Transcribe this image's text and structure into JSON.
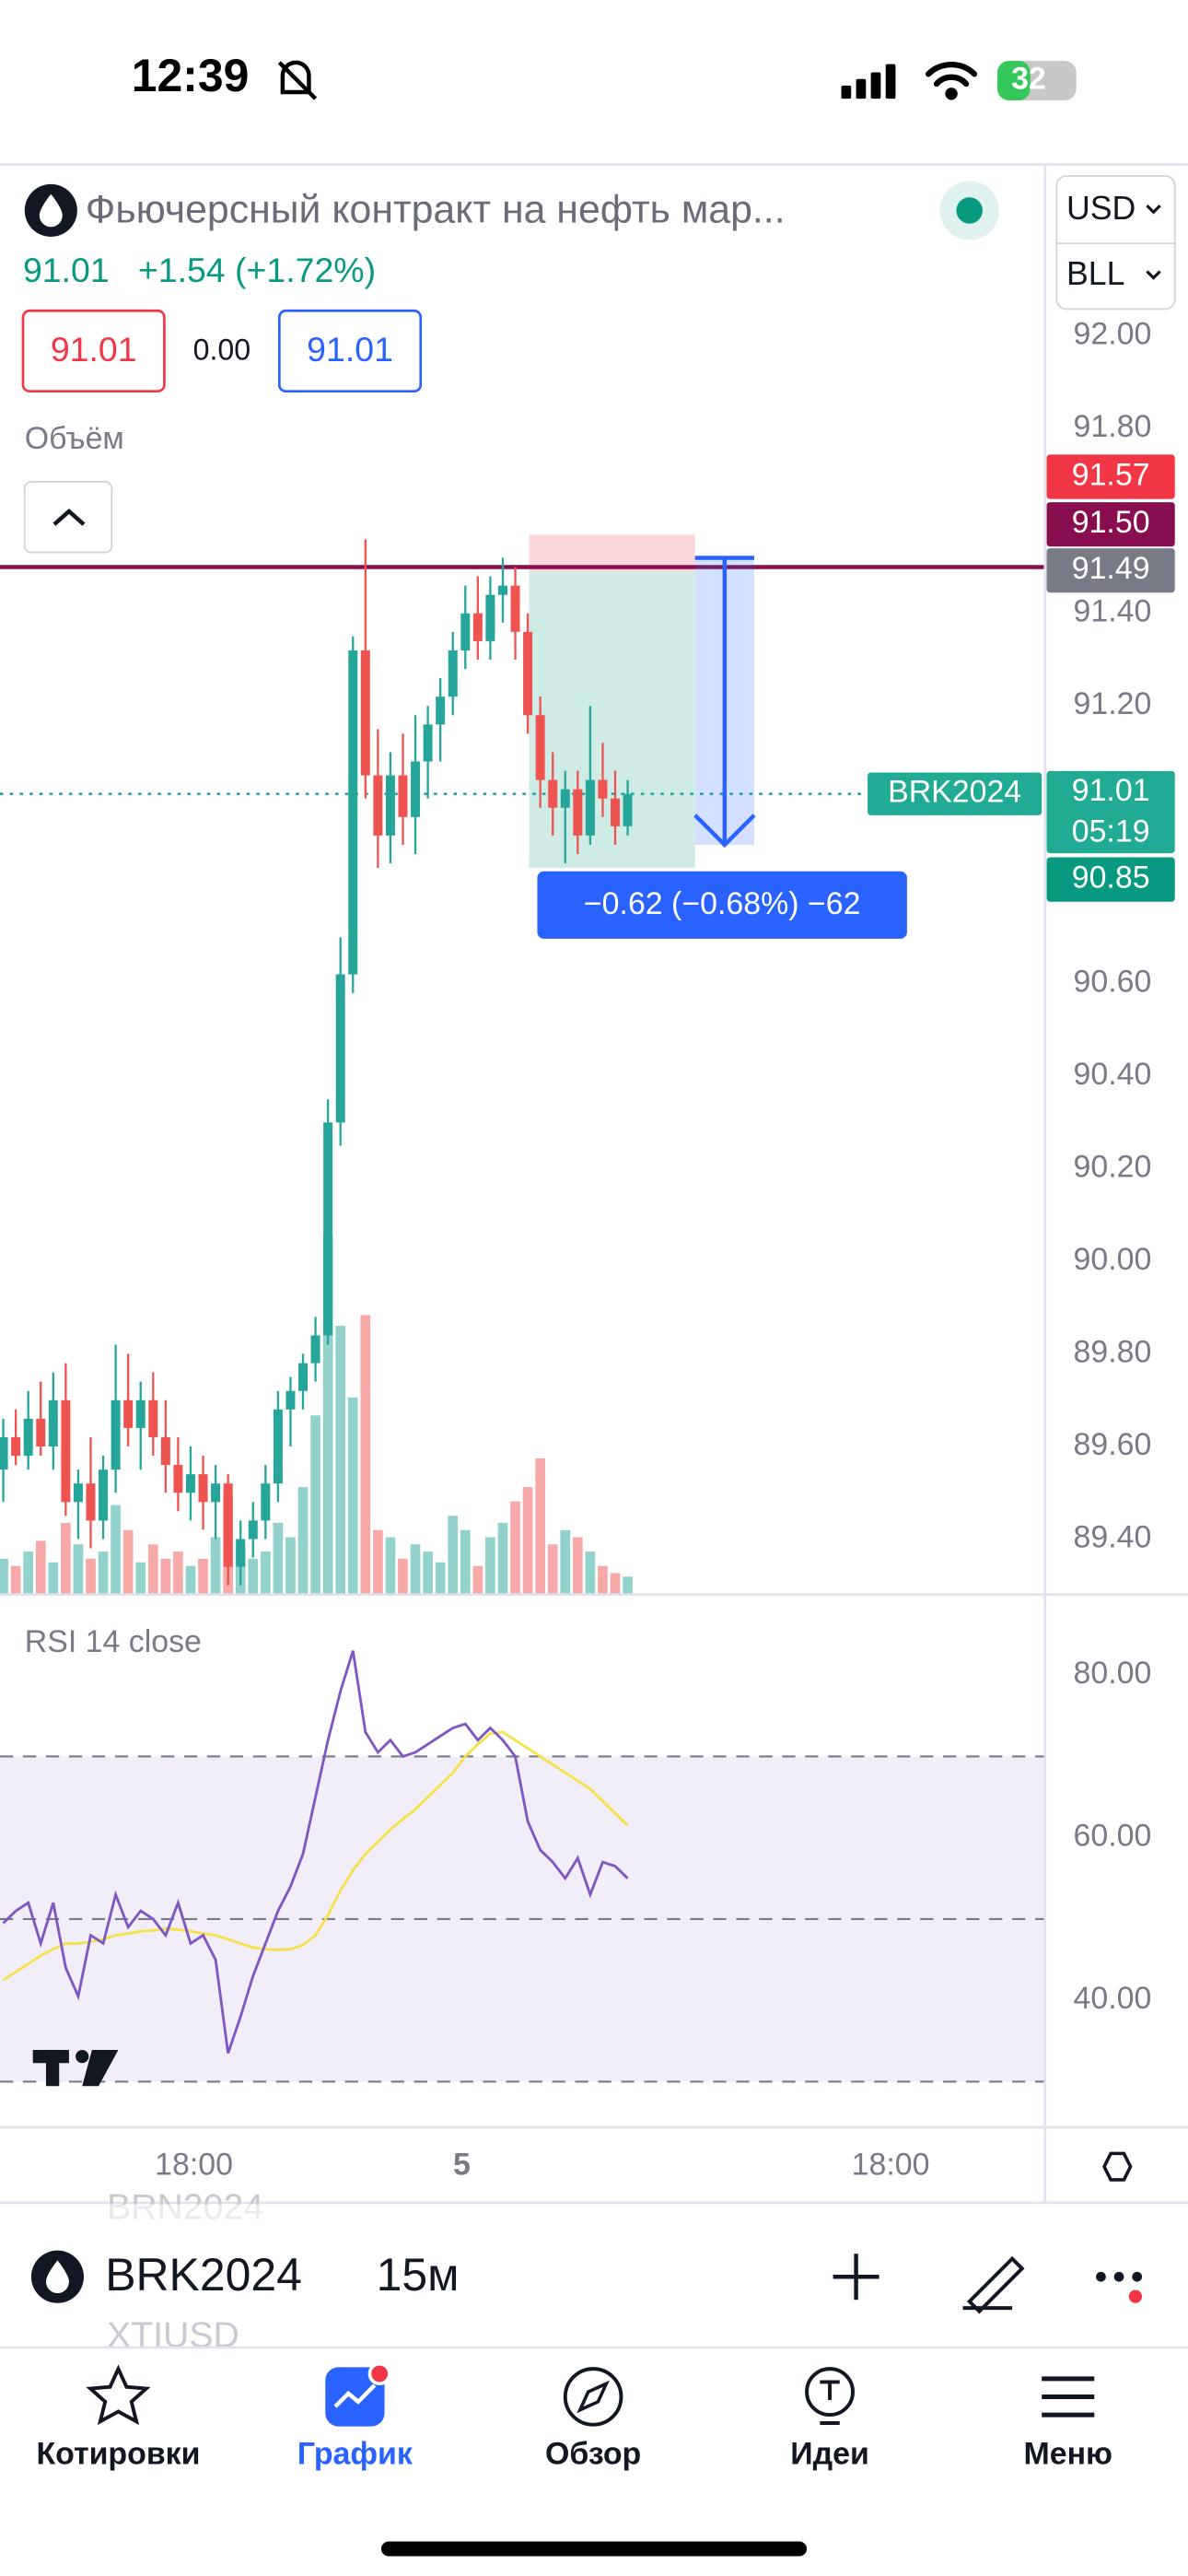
{
  "status_bar": {
    "time": "12:39",
    "battery": "32"
  },
  "header": {
    "title": "Фьючерсный контракт на нефть мар...",
    "price": "91.01",
    "change": "+1.54 (+1.72%)",
    "sell": "91.01",
    "spread": "0.00",
    "buy": "91.01",
    "currency": "USD",
    "unit": "BLL",
    "volume_label": "Объём"
  },
  "chart_data": {
    "type": "candlestick",
    "open": [
      89.55,
      89.62,
      89.58,
      89.66,
      89.6,
      89.7,
      89.48,
      89.52,
      89.44,
      89.55,
      89.7,
      89.64,
      89.7,
      89.62,
      89.56,
      89.5,
      89.54,
      89.48,
      89.52,
      89.34,
      89.4,
      89.44,
      89.52,
      89.68,
      89.72,
      89.78,
      89.84,
      90.3,
      90.62,
      91.32,
      91.05,
      90.92,
      91.05,
      90.96,
      91.08,
      91.16,
      91.22,
      91.32,
      91.4,
      91.34,
      91.44,
      91.46,
      91.36,
      91.18,
      91.04,
      90.98,
      91.02,
      90.92,
      91.04,
      91.0,
      90.94
    ],
    "high": [
      89.66,
      89.68,
      89.72,
      89.74,
      89.76,
      89.78,
      89.55,
      89.62,
      89.58,
      89.82,
      89.8,
      89.74,
      89.76,
      89.7,
      89.62,
      89.6,
      89.58,
      89.56,
      89.54,
      89.44,
      89.48,
      89.56,
      89.72,
      89.75,
      89.8,
      89.88,
      90.35,
      90.7,
      91.35,
      91.56,
      91.15,
      91.1,
      91.14,
      91.18,
      91.2,
      91.26,
      91.36,
      91.46,
      91.48,
      91.48,
      91.52,
      91.5,
      91.4,
      91.22,
      91.1,
      91.06,
      91.06,
      91.2,
      91.12,
      91.06,
      91.04
    ],
    "low": [
      89.48,
      89.56,
      89.55,
      89.58,
      89.55,
      89.45,
      89.4,
      89.38,
      89.4,
      89.5,
      89.6,
      89.55,
      89.58,
      89.5,
      89.46,
      89.44,
      89.42,
      89.4,
      89.3,
      89.3,
      89.36,
      89.4,
      89.48,
      89.6,
      89.68,
      89.74,
      89.82,
      90.25,
      90.58,
      91.0,
      90.85,
      90.86,
      90.9,
      90.88,
      91.0,
      91.08,
      91.18,
      91.28,
      91.3,
      91.3,
      91.38,
      91.3,
      91.14,
      90.98,
      90.92,
      90.86,
      90.88,
      90.9,
      90.96,
      90.9,
      90.92
    ],
    "close": [
      89.62,
      89.58,
      89.66,
      89.6,
      89.7,
      89.48,
      89.52,
      89.44,
      89.55,
      89.7,
      89.64,
      89.7,
      89.62,
      89.56,
      89.5,
      89.54,
      89.48,
      89.52,
      89.34,
      89.4,
      89.44,
      89.52,
      89.68,
      89.72,
      89.78,
      89.84,
      90.3,
      90.62,
      91.32,
      91.05,
      90.92,
      91.05,
      90.96,
      91.08,
      91.16,
      91.22,
      91.32,
      91.4,
      91.34,
      91.44,
      91.46,
      91.36,
      91.18,
      91.04,
      90.98,
      91.02,
      90.92,
      91.04,
      91.0,
      90.94,
      91.01
    ],
    "volume": [
      10,
      8,
      12,
      15,
      9,
      20,
      14,
      10,
      12,
      25,
      18,
      9,
      14,
      10,
      12,
      8,
      10,
      16,
      28,
      14,
      10,
      12,
      20,
      16,
      30,
      50,
      100,
      75,
      55,
      78,
      18,
      16,
      10,
      14,
      12,
      9,
      22,
      18,
      8,
      16,
      20,
      26,
      30,
      38,
      14,
      18,
      16,
      12,
      8,
      6,
      5
    ],
    "up_color": "#26a69a",
    "down_color": "#ef5350",
    "ylim": [
      89.28,
      92.37
    ],
    "yticks": [
      {
        "value": 92,
        "label": "92.00"
      },
      {
        "value": 91.8,
        "label": "91.80"
      },
      {
        "value": 91.4,
        "label": "91.40"
      },
      {
        "value": 91.2,
        "label": "91.20"
      },
      {
        "value": 90.6,
        "label": "90.60"
      },
      {
        "value": 90.4,
        "label": "90.40"
      },
      {
        "value": 90.2,
        "label": "90.20"
      },
      {
        "value": 90,
        "label": "90.00"
      },
      {
        "value": 89.8,
        "label": "89.80"
      },
      {
        "value": 89.6,
        "label": "89.60"
      },
      {
        "value": 89.4,
        "label": "89.40"
      }
    ],
    "hline": {
      "value": 91.5,
      "color": "#880e4f"
    },
    "axis_labels": [
      {
        "value": 91.57,
        "label": "91.57",
        "color": "#f23645"
      },
      {
        "value": 91.5,
        "label": "91.50",
        "color": "#880e4f"
      },
      {
        "value": 91.49,
        "label": "91.49",
        "color": "#787b86"
      },
      {
        "value": 91.01,
        "label": "91.01",
        "sub": "05:19",
        "color": "#22ab94"
      },
      {
        "value": 90.85,
        "label": "90.85",
        "color": "#089981"
      }
    ],
    "symbol_tag": "BRK2024",
    "position": {
      "stop": 91.57,
      "entry": 91.49,
      "target": 90.85
    },
    "measure": {
      "from": 91.52,
      "to": 90.9,
      "label": "−0.62 (−0.68%) −62"
    },
    "time_labels": [
      "18:00",
      "5",
      "18:00"
    ],
    "rsi": {
      "title": "RSI 14 close",
      "color": "#7e57c2",
      "ma_color": "#f7e14b",
      "values": [
        49.5,
        51,
        52,
        47,
        52,
        44,
        40.5,
        48,
        47,
        53,
        49,
        51,
        50,
        48,
        52,
        47,
        48,
        45,
        33.5,
        38,
        43,
        47,
        51,
        54,
        58,
        65,
        72,
        78,
        83,
        73,
        70.5,
        72,
        70,
        70.5,
        71.5,
        72.5,
        73.5,
        74,
        72,
        73.5,
        72,
        70,
        62,
        58.5,
        57,
        55,
        57.5,
        53,
        57,
        56.5,
        55
      ],
      "ma": [
        42.5,
        43.5,
        44.5,
        45.5,
        46.3,
        47,
        47,
        47.2,
        47.5,
        48,
        48.2,
        48.5,
        48.6,
        48.8,
        48.7,
        48.5,
        48.2,
        48,
        47.5,
        47,
        46.5,
        46.3,
        46.2,
        46.3,
        46.8,
        48,
        50.5,
        53.5,
        56,
        58,
        59.5,
        61,
        62.3,
        63.5,
        65,
        66.5,
        68,
        70,
        71.5,
        72.8,
        73,
        72,
        71,
        70,
        69,
        68,
        67,
        66,
        64.5,
        63,
        61.5
      ],
      "ylim": [
        24.4,
        89.5
      ],
      "yticks": [
        {
          "value": 80,
          "label": "80.00"
        },
        {
          "value": 60,
          "label": "60.00"
        },
        {
          "value": 40,
          "label": "40.00"
        }
      ],
      "bands": [
        70,
        50,
        30
      ]
    }
  },
  "toolbar": {
    "symbol": "BRK2024",
    "interval": "15м",
    "prev_symbol": "BRN2024",
    "next_symbol": "XTIUSD"
  },
  "tabs": [
    "Котировки",
    "График",
    "Обзор",
    "Идеи",
    "Меню"
  ]
}
